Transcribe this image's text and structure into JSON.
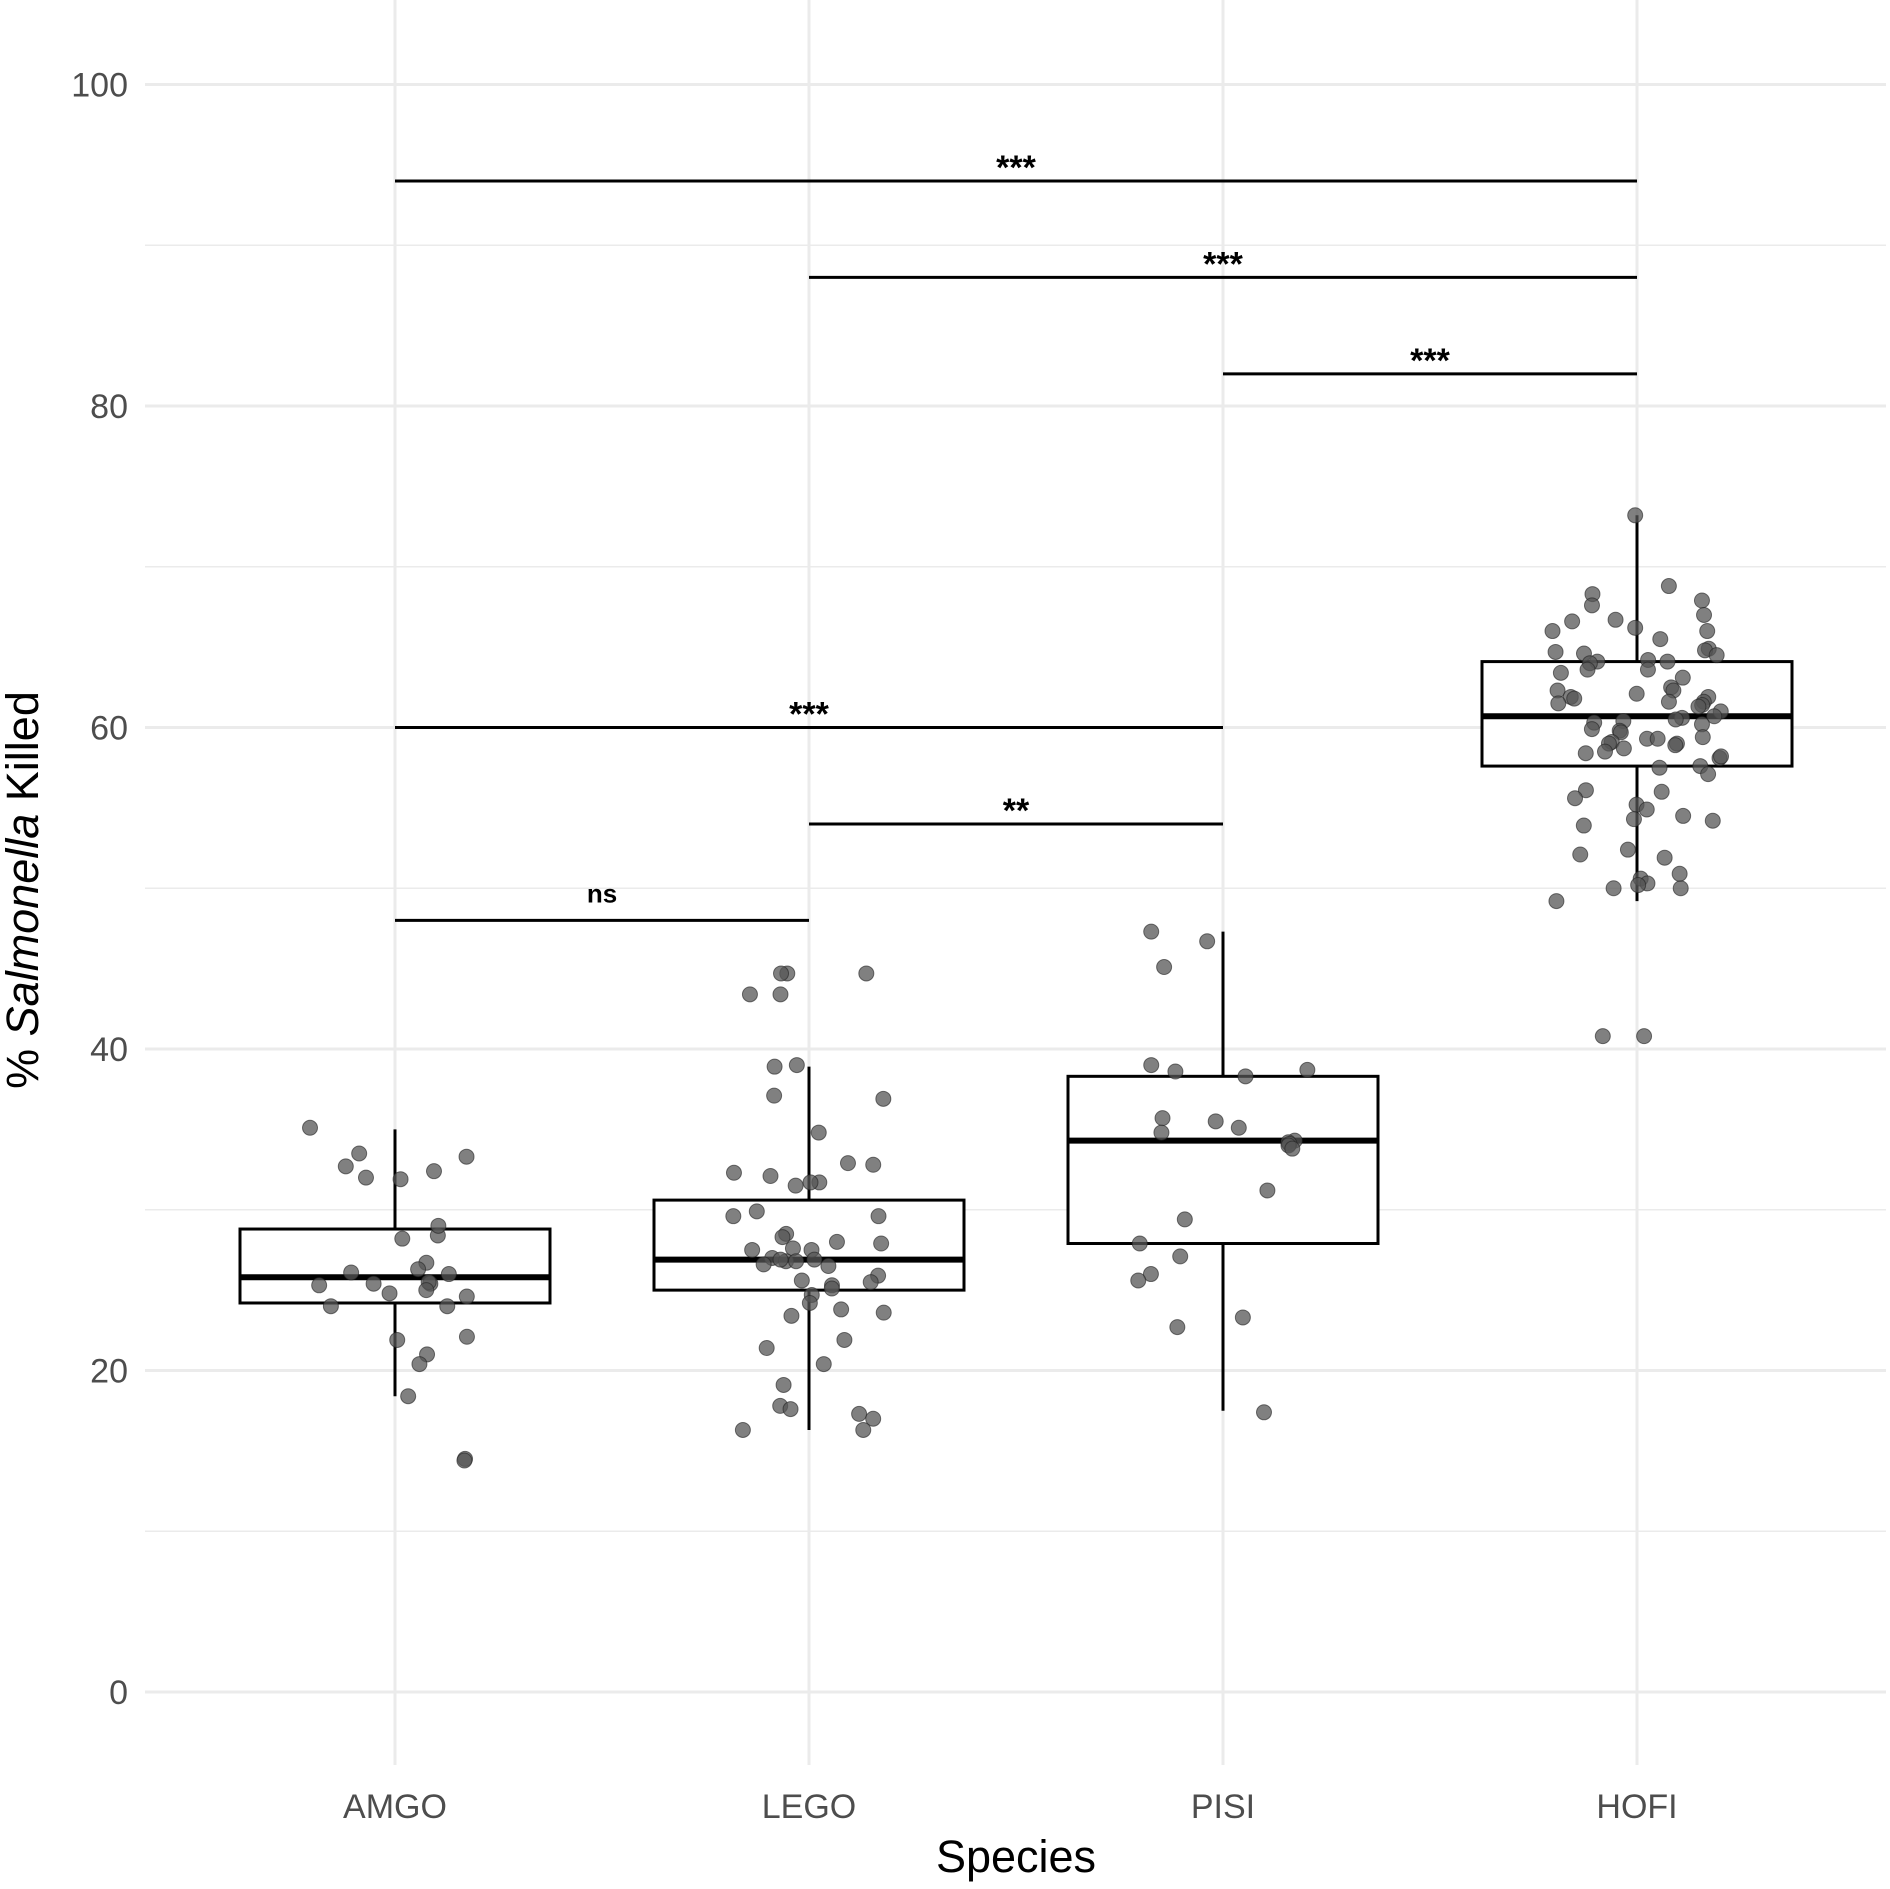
{
  "chart_data": {
    "type": "boxplot",
    "xlabel": "Species",
    "ylabel_prefix": "% ",
    "ylabel_italic": "Salmonella",
    "ylabel_suffix": " Killed",
    "ylim": [
      -5,
      103
    ],
    "yticks": [
      0,
      20,
      40,
      60,
      80,
      100
    ],
    "grid": true,
    "categories": [
      "AMGO",
      "LEGO",
      "PISI",
      "HOFI"
    ],
    "boxes": [
      {
        "category": "AMGO",
        "whisker_low": 18.4,
        "q1": 24.2,
        "median": 25.8,
        "q3": 28.8,
        "whisker_high": 35.0
      },
      {
        "category": "LEGO",
        "whisker_low": 16.3,
        "q1": 25.0,
        "median": 26.9,
        "q3": 30.6,
        "whisker_high": 38.9
      },
      {
        "category": "PISI",
        "whisker_low": 17.5,
        "q1": 27.9,
        "median": 34.3,
        "q3": 38.3,
        "whisker_high": 47.3
      },
      {
        "category": "HOFI",
        "whisker_low": 49.2,
        "q1": 57.6,
        "median": 60.7,
        "q3": 64.1,
        "whisker_high": 73.2
      }
    ],
    "points": {
      "AMGO": [
        35.1,
        33.3,
        33.5,
        32.7,
        32.4,
        31.9,
        32.0,
        28.4,
        29.0,
        28.2,
        26.7,
        26.3,
        26.0,
        26.1,
        25.4,
        25.4,
        25.5,
        25.3,
        25.0,
        24.8,
        24.6,
        24.0,
        24.0,
        21.9,
        22.1,
        21.0,
        20.4,
        18.4,
        14.5,
        14.4
      ],
      "LEGO": [
        44.7,
        44.7,
        44.7,
        43.4,
        43.4,
        38.9,
        39.0,
        37.1,
        36.9,
        34.8,
        32.9,
        32.8,
        32.3,
        32.1,
        31.7,
        31.7,
        31.5,
        29.9,
        29.6,
        29.6,
        28.5,
        28.3,
        28.0,
        27.9,
        27.5,
        27.5,
        27.6,
        27.0,
        26.8,
        26.8,
        26.9,
        26.9,
        26.5,
        26.6,
        25.9,
        25.6,
        25.5,
        25.3,
        25.1,
        24.7,
        24.2,
        23.8,
        23.6,
        23.4,
        21.9,
        21.4,
        20.4,
        19.1,
        17.8,
        17.6,
        17.3,
        17.0,
        16.3,
        16.3
      ],
      "PISI": [
        47.3,
        46.7,
        45.1,
        39.0,
        38.7,
        38.6,
        38.3,
        35.7,
        35.5,
        35.1,
        34.8,
        34.3,
        34.2,
        34.1,
        34.0,
        33.8,
        31.2,
        29.4,
        27.9,
        27.1,
        26.0,
        25.6,
        23.3,
        22.7,
        17.4
      ],
      "HOFI": [
        73.2,
        68.8,
        68.3,
        67.9,
        67.6,
        66.7,
        67.0,
        66.6,
        66.2,
        66.0,
        66.0,
        65.5,
        64.9,
        64.7,
        64.8,
        64.6,
        64.5,
        64.2,
        64.1,
        64.1,
        64.0,
        63.6,
        63.6,
        63.4,
        63.1,
        62.5,
        62.3,
        62.1,
        62.3,
        61.9,
        61.9,
        61.8,
        61.6,
        61.6,
        61.5,
        61.4,
        61.3,
        61.0,
        60.7,
        60.6,
        60.4,
        60.3,
        60.5,
        60.2,
        59.8,
        59.9,
        59.7,
        59.4,
        59.3,
        59.1,
        59.3,
        59.0,
        59.0,
        58.9,
        58.7,
        58.4,
        58.5,
        58.1,
        58.2,
        57.5,
        57.6,
        57.1,
        56.1,
        56.0,
        55.6,
        55.2,
        54.9,
        54.5,
        54.2,
        54.3,
        53.9,
        52.4,
        52.1,
        51.9,
        50.6,
        50.3,
        50.2,
        50.0,
        50.0,
        50.9,
        49.2,
        40.8,
        40.8
      ]
    },
    "comparisons": [
      {
        "from": "AMGO",
        "to": "HOFI",
        "y": 94,
        "label": "***"
      },
      {
        "from": "LEGO",
        "to": "HOFI",
        "y": 88,
        "label": "***"
      },
      {
        "from": "PISI",
        "to": "HOFI",
        "y": 82,
        "label": "***"
      },
      {
        "from": "AMGO",
        "to": "PISI",
        "y": 60,
        "label": "***"
      },
      {
        "from": "LEGO",
        "to": "PISI",
        "y": 54,
        "label": "**"
      },
      {
        "from": "AMGO",
        "to": "LEGO",
        "y": 48,
        "label": "ns"
      }
    ],
    "colors": {
      "grid": "#ebebeb",
      "point": "#555555",
      "box": "#000000",
      "tick_text": "#4d4d4d"
    }
  }
}
